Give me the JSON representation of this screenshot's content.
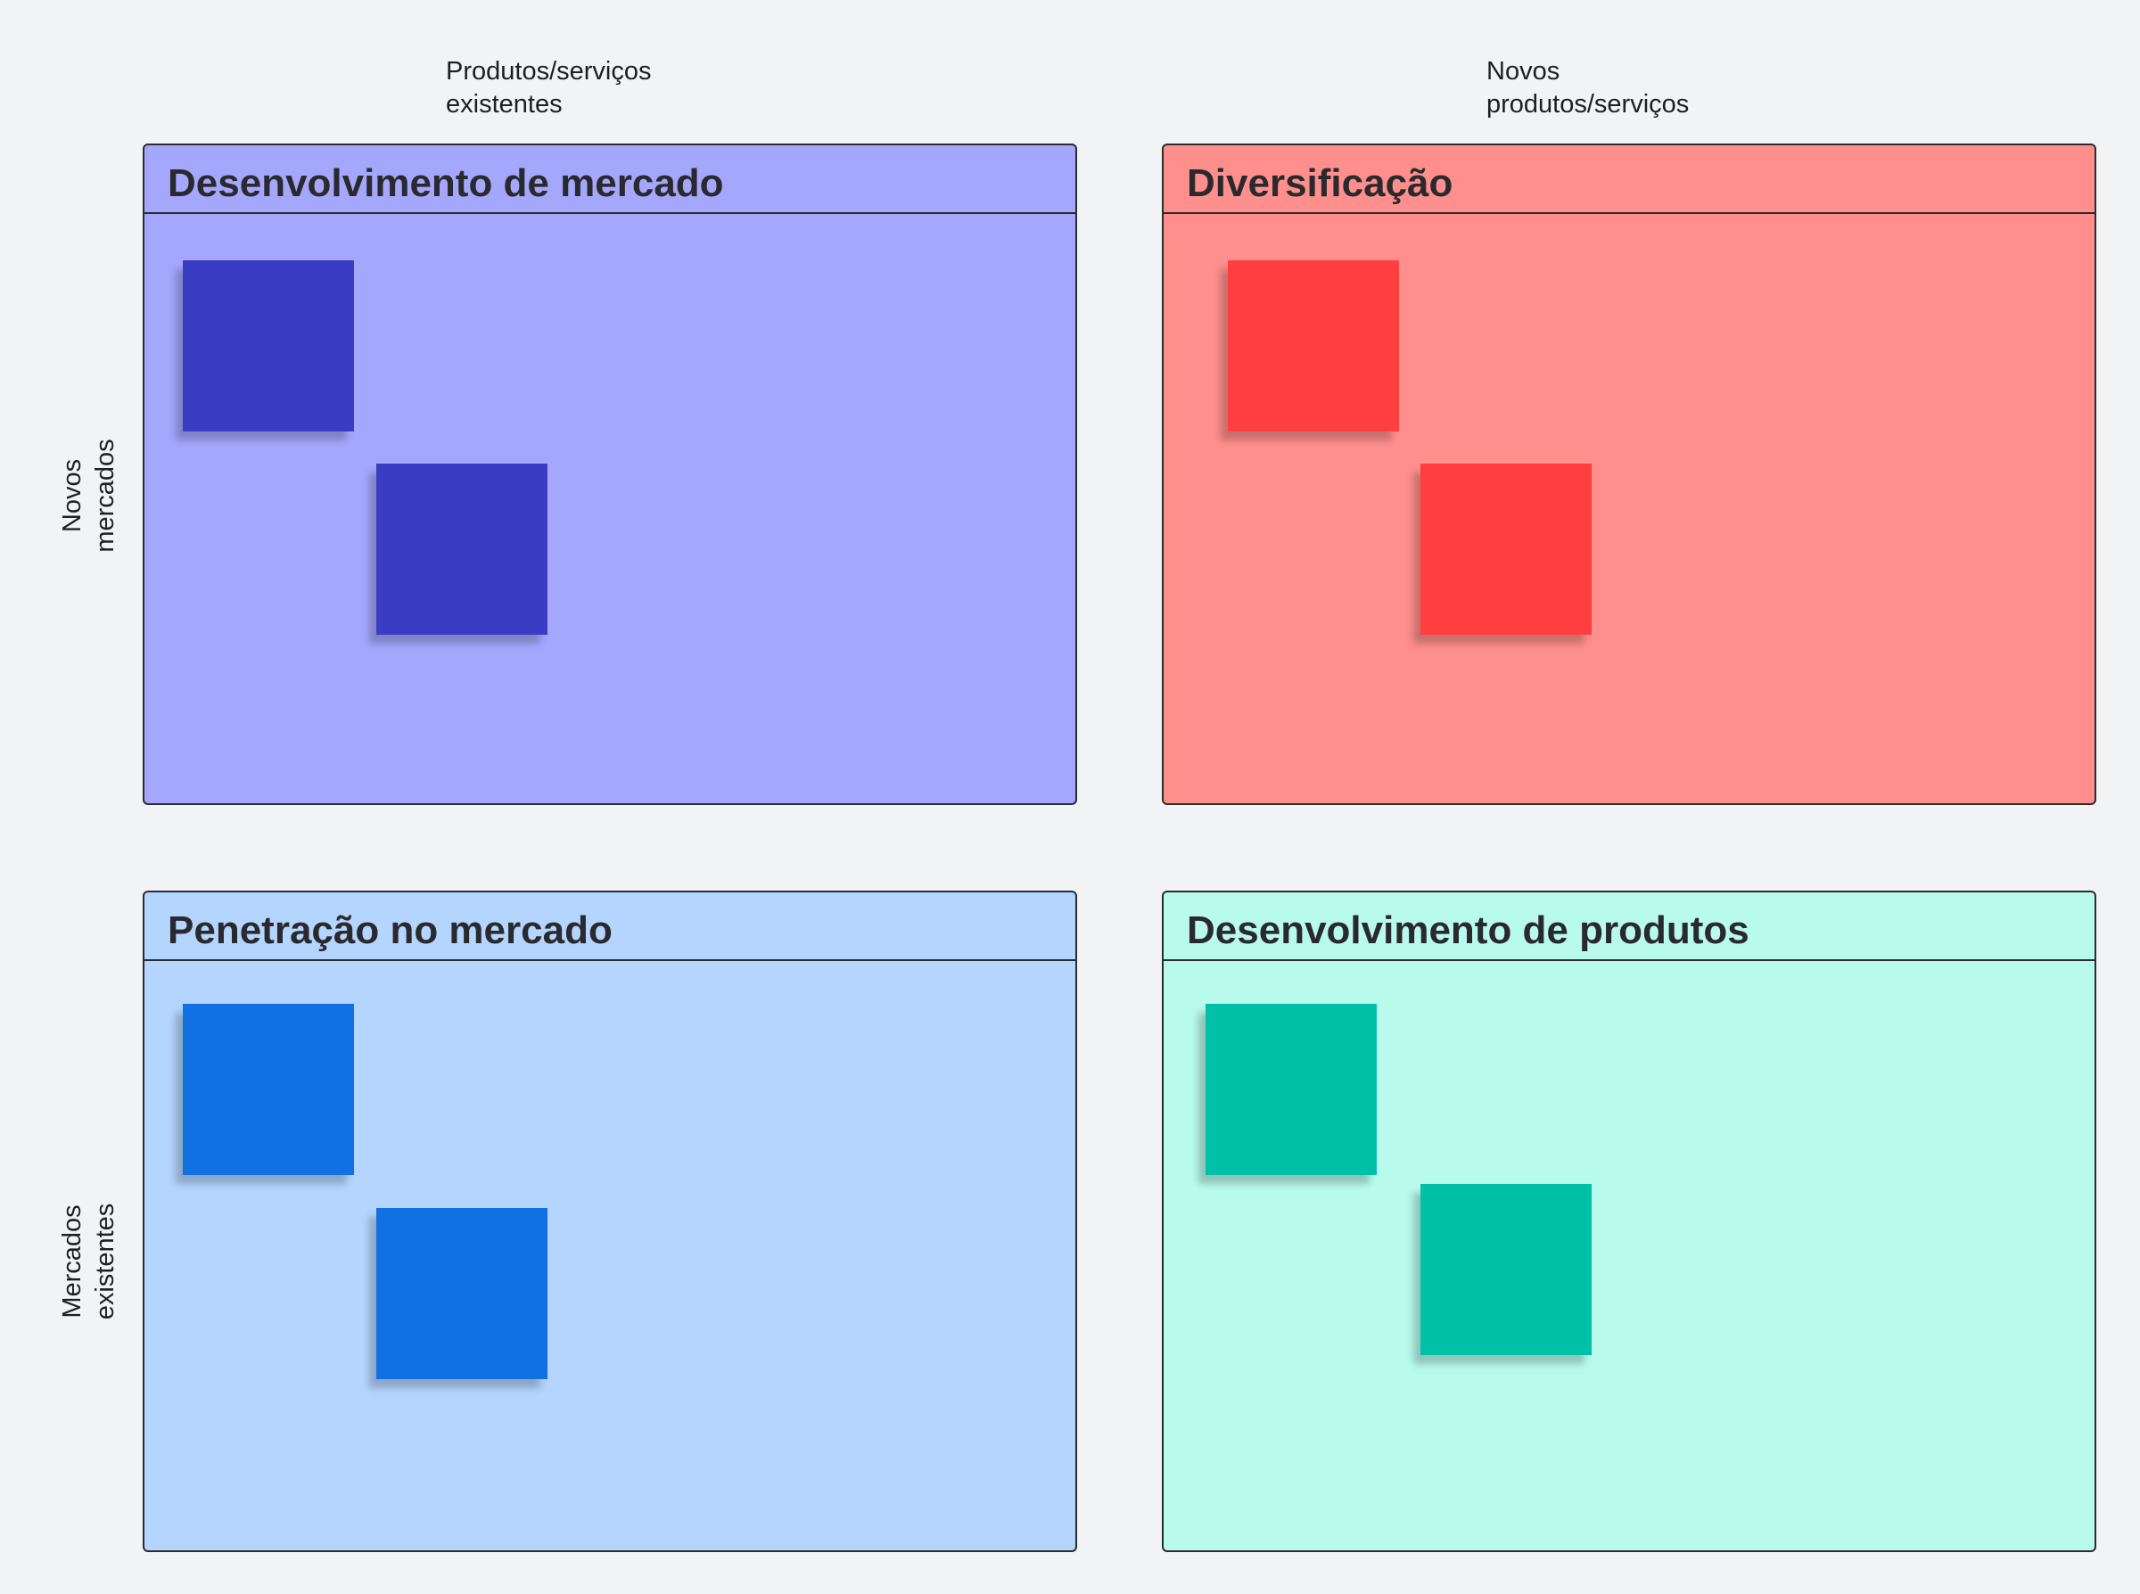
{
  "columns": {
    "existing_products": "Produtos/serviços\nexistentes",
    "new_products": "Novos\nprodutos/serviços"
  },
  "rows": {
    "new_markets": "Novos\nmercados",
    "existing_markets": "Mercados\nexistentes"
  },
  "quadrants": [
    {
      "title": "Desenvolvimento de mercado",
      "background": "#a5a7fd",
      "note_color": "#3a3dc4",
      "notes": 2
    },
    {
      "title": "Diversificação",
      "background": "#ff8f8c",
      "note_color": "#ff3e40",
      "notes": 2
    },
    {
      "title": "Penetração no mercado",
      "background": "#b4d5fe",
      "note_color": "#1171e2",
      "notes": 2
    },
    {
      "title": "Desenvolvimento de produtos",
      "background": "#b8fbec",
      "note_color": "#00c1a8",
      "notes": 2
    }
  ]
}
